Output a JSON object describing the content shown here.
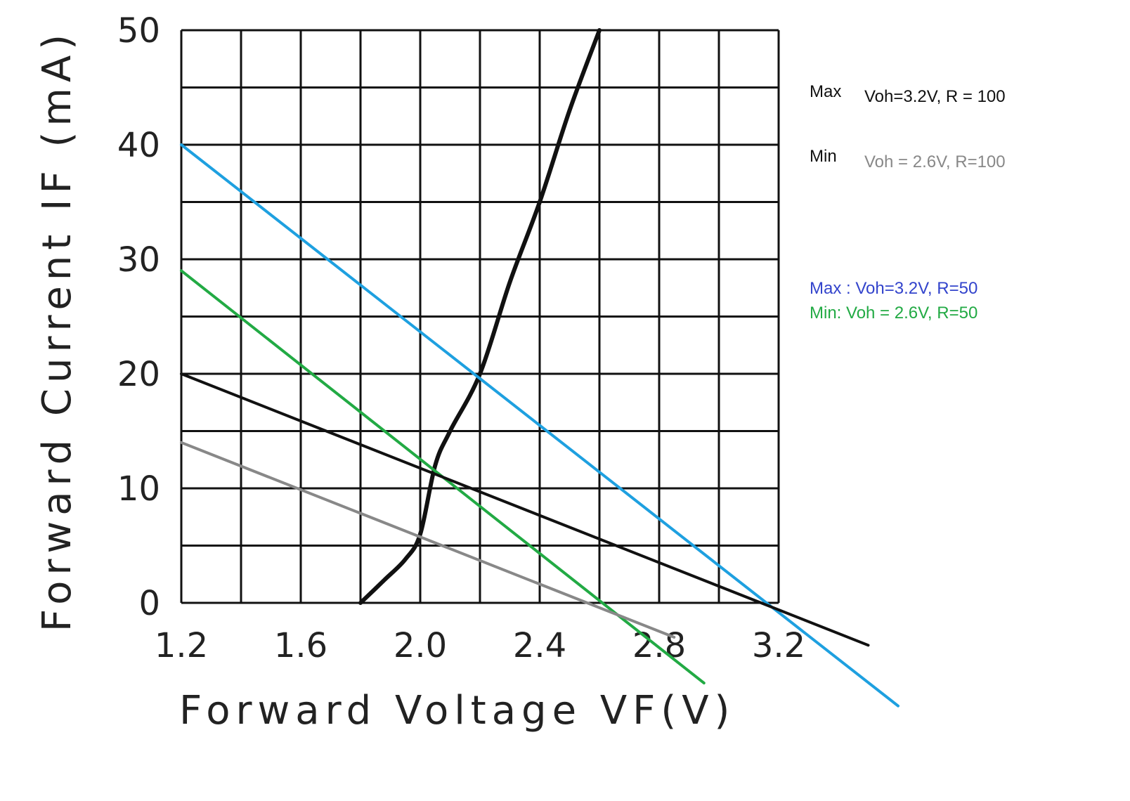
{
  "chart_data": {
    "type": "line",
    "xlabel": "Forward Voltage VF(V)",
    "ylabel": "Forward Current IF (mA)",
    "xlim": [
      1.2,
      3.2
    ],
    "ylim": [
      0,
      50
    ],
    "grid": true,
    "x_ticks": [
      "1.2",
      "1.6",
      "2.0",
      "2.4",
      "2.8",
      "3.2"
    ],
    "y_ticks": [
      "0",
      "10",
      "20",
      "30",
      "40",
      "50"
    ],
    "curves": [
      {
        "role": "diode-iv-curve",
        "color": "#111111",
        "x": [
          1.8,
          1.88,
          1.95,
          2.0,
          2.05,
          2.1,
          2.2,
          2.3,
          2.4,
          2.5,
          2.6
        ],
        "y": [
          0,
          2,
          3.8,
          6,
          12,
          15,
          20,
          28,
          35,
          43,
          50
        ]
      },
      {
        "role": "load-line",
        "color": "#1ea0e0",
        "x": [
          1.2,
          3.6
        ],
        "y": [
          40,
          -9
        ]
      },
      {
        "role": "load-line",
        "color": "#22aa44",
        "x": [
          1.2,
          2.95
        ],
        "y": [
          29,
          -7
        ]
      },
      {
        "role": "load-line",
        "color": "#111111",
        "x": [
          1.2,
          3.5
        ],
        "y": [
          20,
          -3.7
        ]
      },
      {
        "role": "load-line",
        "color": "#888888",
        "x": [
          1.2,
          2.85
        ],
        "y": [
          14,
          -3
        ]
      }
    ],
    "legend": [
      {
        "label": "Max",
        "text": "Voh=3.2V, R =  100",
        "color": "#111111"
      },
      {
        "label": "Min",
        "text": "Voh = 2.6V, R=100",
        "color": "#888888"
      },
      {
        "label": "",
        "text": "Max : Voh=3.2V, R=50",
        "color": "#3344cc"
      },
      {
        "label": "",
        "text": "Min: Voh = 2.6V, R=50",
        "color": "#22aa44"
      }
    ]
  }
}
